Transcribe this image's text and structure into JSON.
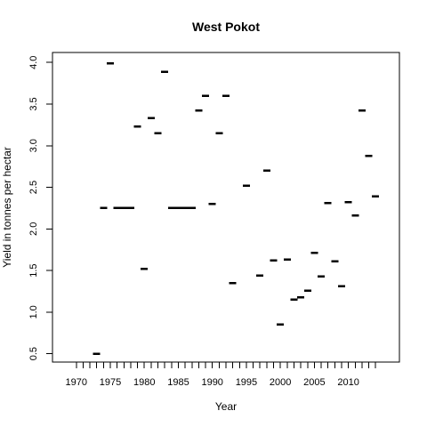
{
  "chart_data": {
    "type": "scatter",
    "title": "West Pokot",
    "xlabel": "Year",
    "ylabel": "Yield in tonnes per hectar",
    "xlim": [
      1966.5,
      2017.5
    ],
    "ylim": [
      0.4,
      4.12
    ],
    "xticks": [
      1970,
      1971,
      1972,
      1973,
      1974,
      1975,
      1976,
      1977,
      1978,
      1979,
      1980,
      1981,
      1982,
      1983,
      1984,
      1985,
      1986,
      1987,
      1988,
      1989,
      1990,
      1991,
      1992,
      1993,
      1994,
      1995,
      1996,
      1997,
      1998,
      1999,
      2000,
      2001,
      2002,
      2003,
      2004,
      2005,
      2006,
      2007,
      2008,
      2009,
      2010,
      2011,
      2012,
      2013,
      2014
    ],
    "xtick_labels": [
      {
        "value": 1970,
        "label": "1970"
      },
      {
        "value": 1975,
        "label": "1975"
      },
      {
        "value": 1980,
        "label": "1980"
      },
      {
        "value": 1985,
        "label": "1985"
      },
      {
        "value": 1990,
        "label": "1990"
      },
      {
        "value": 1995,
        "label": "1995"
      },
      {
        "value": 2000,
        "label": "2000"
      },
      {
        "value": 2005,
        "label": "2005"
      },
      {
        "value": 2010,
        "label": "2010"
      }
    ],
    "yticks": [
      {
        "value": 0.5,
        "label": "0.5"
      },
      {
        "value": 1.0,
        "label": "1.0"
      },
      {
        "value": 1.5,
        "label": "1.5"
      },
      {
        "value": 2.0,
        "label": "2.0"
      },
      {
        "value": 2.5,
        "label": "2.5"
      },
      {
        "value": 3.0,
        "label": "3.0"
      },
      {
        "value": 3.5,
        "label": "3.5"
      },
      {
        "value": 4.0,
        "label": "4.0"
      }
    ],
    "grid": false,
    "points": [
      {
        "x": 1973,
        "y": 0.5
      },
      {
        "x": 1974,
        "y": 2.25
      },
      {
        "x": 1975,
        "y": 3.99
      },
      {
        "x": 1976,
        "y": 2.25
      },
      {
        "x": 1977,
        "y": 2.25
      },
      {
        "x": 1978,
        "y": 2.25
      },
      {
        "x": 1979,
        "y": 3.23
      },
      {
        "x": 1980,
        "y": 1.52
      },
      {
        "x": 1981,
        "y": 3.33
      },
      {
        "x": 1982,
        "y": 3.15
      },
      {
        "x": 1983,
        "y": 3.89
      },
      {
        "x": 1984,
        "y": 2.25
      },
      {
        "x": 1985,
        "y": 2.25
      },
      {
        "x": 1986,
        "y": 2.25
      },
      {
        "x": 1987,
        "y": 2.25
      },
      {
        "x": 1988,
        "y": 3.42
      },
      {
        "x": 1989,
        "y": 3.6
      },
      {
        "x": 1990,
        "y": 2.3
      },
      {
        "x": 1991,
        "y": 3.15
      },
      {
        "x": 1992,
        "y": 3.6
      },
      {
        "x": 1993,
        "y": 1.35
      },
      {
        "x": 1995,
        "y": 2.52
      },
      {
        "x": 1997,
        "y": 1.44
      },
      {
        "x": 1998,
        "y": 2.7
      },
      {
        "x": 1999,
        "y": 1.62
      },
      {
        "x": 2000,
        "y": 0.85
      },
      {
        "x": 2001,
        "y": 1.63
      },
      {
        "x": 2002,
        "y": 1.15
      },
      {
        "x": 2003,
        "y": 1.18
      },
      {
        "x": 2004,
        "y": 1.26
      },
      {
        "x": 2005,
        "y": 1.71
      },
      {
        "x": 2006,
        "y": 1.43
      },
      {
        "x": 2007,
        "y": 2.31
      },
      {
        "x": 2008,
        "y": 1.61
      },
      {
        "x": 2009,
        "y": 1.31
      },
      {
        "x": 2010,
        "y": 2.32
      },
      {
        "x": 2011,
        "y": 2.16
      },
      {
        "x": 2012,
        "y": 3.42
      },
      {
        "x": 2013,
        "y": 2.88
      },
      {
        "x": 2014,
        "y": 2.39
      }
    ],
    "colors": {
      "background": "#ffffff",
      "ink": "#000000"
    }
  }
}
